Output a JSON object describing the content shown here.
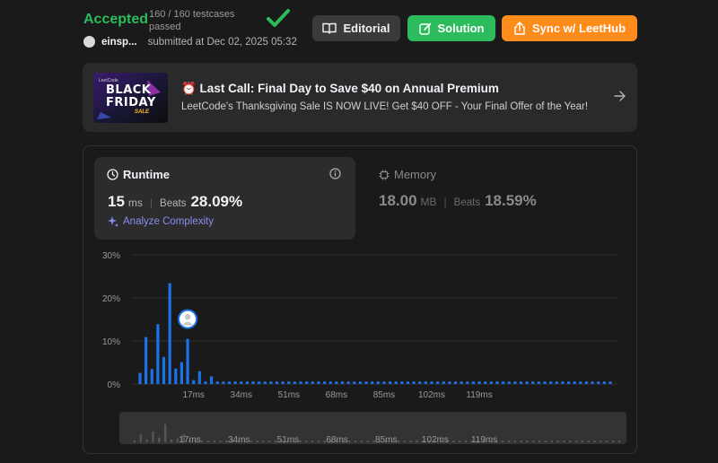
{
  "submission": {
    "status": "Accepted",
    "testcases": "160 / 160 testcases passed",
    "username": "einsp...",
    "submitted_at": "submitted at Dec 02, 2025 05:32"
  },
  "actions": {
    "editorial": "Editorial",
    "solution": "Solution",
    "sync": "Sync w/ LeetHub"
  },
  "promo": {
    "image_brand": "LeetCode",
    "image_line1": "BLACK",
    "image_line2": "FRIDAY",
    "image_line3": "SALE",
    "title": "⏰ Last Call: Final Day to Save $40 on Annual Premium",
    "subtitle": "LeetCode's Thanksgiving Sale IS NOW LIVE! Get $40 OFF - Your Final Offer of the Year!"
  },
  "runtime": {
    "title": "Runtime",
    "value": "15",
    "unit": "ms",
    "beats_label": "Beats",
    "beats_value": "28.09%",
    "analyze": "Analyze Complexity"
  },
  "memory": {
    "title": "Memory",
    "value": "18.00",
    "unit": "MB",
    "beats_label": "Beats",
    "beats_value": "18.59%"
  },
  "colors": {
    "accepted": "#2cbb5d",
    "bar": "#1a73e8",
    "sync": "#ff8c1a"
  },
  "chart_data": {
    "type": "bar",
    "ylim": [
      0,
      30
    ],
    "y_ticks": [
      "30%",
      "20%",
      "10%",
      "0%"
    ],
    "x_ticks": [
      "17ms",
      "34ms",
      "51ms",
      "68ms",
      "85ms",
      "102ms",
      "119ms"
    ],
    "mini_x_ticks": [
      "17ms",
      "34ms",
      "51ms",
      "68ms",
      "85ms",
      "102ms",
      "119ms"
    ],
    "values": [
      2.6,
      10.9,
      3.5,
      13.9,
      6.3,
      23.4,
      3.6,
      5.1,
      10.5,
      0.9,
      3.0,
      0.6,
      1.8,
      0.6,
      0.6,
      0.6,
      0.6,
      0.6,
      0.6,
      0.6,
      0.6,
      0.6,
      0.6,
      0.6,
      0.6,
      0.6,
      0.6,
      0.6,
      0.6,
      0.6,
      0.6,
      0.6,
      0.6,
      0.6,
      0.6,
      0.6,
      0.6,
      0.6,
      0.6,
      0.6,
      0.6,
      0.6,
      0.6,
      0.6,
      0.6,
      0.6,
      0.6,
      0.6,
      0.6,
      0.6,
      0.6,
      0.6,
      0.6,
      0.6,
      0.6,
      0.6,
      0.6,
      0.6,
      0.6,
      0.6,
      0.6,
      0.6,
      0.6,
      0.6,
      0.6,
      0.6,
      0.6,
      0.6,
      0.6,
      0.6,
      0.6,
      0.6,
      0.6,
      0.6,
      0.6,
      0.6,
      0.6,
      0.6,
      0.6,
      0.6
    ],
    "user_bar_index": 8,
    "grid": true
  }
}
